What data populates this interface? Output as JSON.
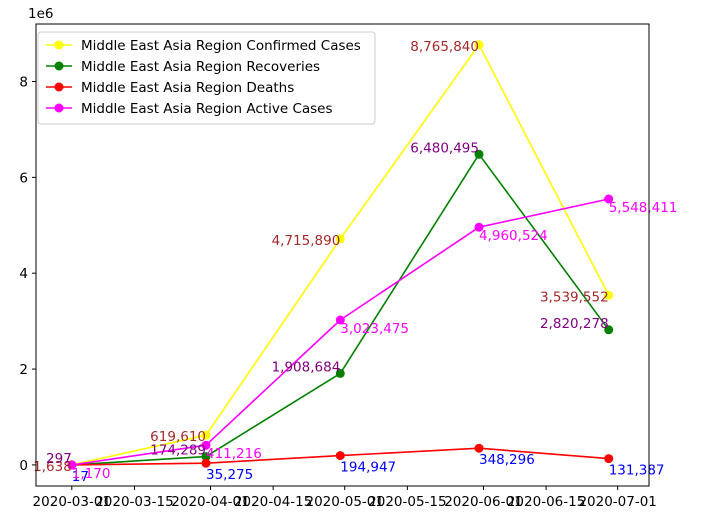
{
  "chart_data": {
    "type": "line",
    "title": "",
    "xlabel": "",
    "ylabel": "",
    "y_offset_label": "1e6",
    "x": [
      "2020-03-01",
      "2020-03-31",
      "2020-04-30",
      "2020-05-31",
      "2020-06-29"
    ],
    "x_ticks": [
      "2020-03-01",
      "2020-03-15",
      "2020-04-01",
      "2020-04-15",
      "2020-05-01",
      "2020-05-15",
      "2020-06-01",
      "2020-06-15",
      "2020-07-01"
    ],
    "y_ticks": [
      "0",
      "2",
      "4",
      "6",
      "8"
    ],
    "ylim": [
      -0.44,
      9.2
    ],
    "grid": false,
    "legend_position": "top-left",
    "series": [
      {
        "name": "Middle East Asia Region Confirmed Cases",
        "color": "#ffff00",
        "values": [
          1638,
          619610,
          4715890,
          8765840,
          3539552
        ],
        "labels": [
          "1,638",
          "619,610",
          "4,715,890",
          "8,765,840",
          "3,539,552"
        ],
        "label_color": "#a52a2a"
      },
      {
        "name": "Middle East Asia Region Recoveries",
        "color": "#008000",
        "values": [
          297,
          174289,
          1908684,
          6480495,
          2820278
        ],
        "labels": [
          "297",
          "174,289",
          "1,908,684",
          "6,480,495",
          "2,820,278"
        ],
        "label_color": "#800080"
      },
      {
        "name": "Middle East Asia Region Deaths",
        "color": "#ff0000",
        "values": [
          17,
          35275,
          194947,
          348296,
          131387
        ],
        "labels": [
          "17",
          "35,275",
          "194,947",
          "348,296",
          "131,387"
        ],
        "label_color": "#0000ff"
      },
      {
        "name": "Middle East Asia Region Active Cases",
        "color": "#ff00ff",
        "values": [
          1170,
          411216,
          3023475,
          4960524,
          5548411
        ],
        "labels": [
          "1,170",
          "411,216",
          "3,023,475",
          "4,960,524",
          "5,548,411"
        ],
        "label_color": "#ff00ff"
      }
    ]
  }
}
